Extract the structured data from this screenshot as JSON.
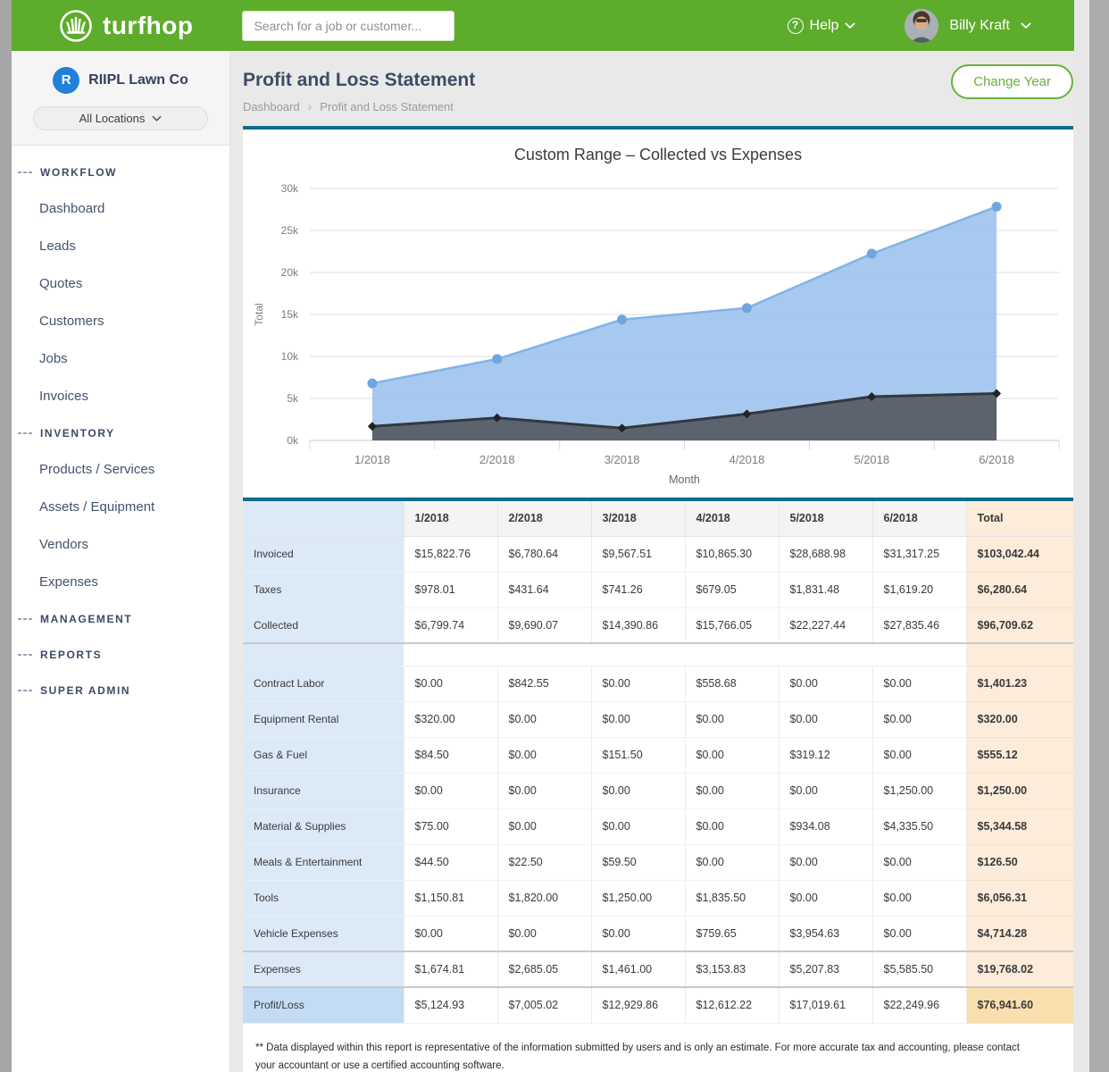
{
  "theme": {
    "header_green": "#5dac2b",
    "accent_teal": "#0d6d8c",
    "button_green": "#68b23b",
    "company_avatar_blue": "#2180d8",
    "collected_blue": "#a3c7ee",
    "expenses_dark": "#575f69"
  },
  "header": {
    "logo_text": "turfhop",
    "search_placeholder": "Search for a job or customer...",
    "help_label": "Help",
    "user_name": "Billy Kraft"
  },
  "sidebar": {
    "company": {
      "initial": "R",
      "name": "RIIPL Lawn Co",
      "location_selector": "All Locations"
    },
    "nav": [
      {
        "type": "section",
        "label": "WORKFLOW"
      },
      {
        "type": "item",
        "label": "Dashboard"
      },
      {
        "type": "item",
        "label": "Leads"
      },
      {
        "type": "item",
        "label": "Quotes"
      },
      {
        "type": "item",
        "label": "Customers"
      },
      {
        "type": "item",
        "label": "Jobs"
      },
      {
        "type": "item",
        "label": "Invoices"
      },
      {
        "type": "section",
        "label": "INVENTORY"
      },
      {
        "type": "item",
        "label": "Products / Services"
      },
      {
        "type": "item",
        "label": "Assets / Equipment"
      },
      {
        "type": "item",
        "label": "Vendors"
      },
      {
        "type": "item",
        "label": "Expenses"
      },
      {
        "type": "section",
        "label": "MANAGEMENT"
      },
      {
        "type": "section",
        "label": "REPORTS"
      },
      {
        "type": "section",
        "label": "SUPER ADMIN"
      }
    ]
  },
  "page": {
    "title": "Profit and Loss Statement",
    "breadcrumbs": [
      "Dashboard",
      "Profit and Loss Statement"
    ],
    "change_year_label": "Change Year"
  },
  "chart_data": {
    "type": "area",
    "title": "Custom Range – Collected vs Expenses",
    "x": [
      "1/2018",
      "2/2018",
      "3/2018",
      "4/2018",
      "5/2018",
      "6/2018"
    ],
    "xlabel": "Month",
    "ylabel": "Total",
    "ylim": [
      0,
      30000
    ],
    "yticks": [
      {
        "value": 0,
        "label": "0k"
      },
      {
        "value": 5000,
        "label": "5k"
      },
      {
        "value": 10000,
        "label": "10k"
      },
      {
        "value": 15000,
        "label": "15k"
      },
      {
        "value": 20000,
        "label": "20k"
      },
      {
        "value": 25000,
        "label": "25k"
      },
      {
        "value": 30000,
        "label": "30k"
      }
    ],
    "grid": true,
    "legend": false,
    "series": [
      {
        "name": "Collected",
        "values": [
          6799.74,
          9690.07,
          14390.86,
          15766.05,
          22227.44,
          27835.46
        ],
        "fill": "#a3c7ee",
        "stroke": "#82b3e7",
        "point_color": "#6fa6e0",
        "marker": "circle",
        "line_width": 2.5
      },
      {
        "name": "Expenses",
        "values": [
          1674.81,
          2685.05,
          1461.0,
          3153.83,
          5207.83,
          5585.5
        ],
        "fill": "#575f69",
        "stroke": "#34383f",
        "point_color": "#222428",
        "marker": "diamond",
        "line_width": 3
      }
    ]
  },
  "table": {
    "columns": [
      "1/2018",
      "2/2018",
      "3/2018",
      "4/2018",
      "5/2018",
      "6/2018"
    ],
    "total_label": "Total",
    "income_rows": [
      {
        "label": "Invoiced",
        "values": [
          "$15,822.76",
          "$6,780.64",
          "$9,567.51",
          "$10,865.30",
          "$28,688.98",
          "$31,317.25"
        ],
        "total": "$103,042.44"
      },
      {
        "label": "Taxes",
        "values": [
          "$978.01",
          "$431.64",
          "$741.26",
          "$679.05",
          "$1,831.48",
          "$1,619.20"
        ],
        "total": "$6,280.64"
      },
      {
        "label": "Collected",
        "values": [
          "$6,799.74",
          "$9,690.07",
          "$14,390.86",
          "$15,766.05",
          "$22,227.44",
          "$27,835.46"
        ],
        "total": "$96,709.62"
      }
    ],
    "expense_rows": [
      {
        "label": "Contract Labor",
        "values": [
          "$0.00",
          "$842.55",
          "$0.00",
          "$558.68",
          "$0.00",
          "$0.00"
        ],
        "total": "$1,401.23"
      },
      {
        "label": "Equipment Rental",
        "values": [
          "$320.00",
          "$0.00",
          "$0.00",
          "$0.00",
          "$0.00",
          "$0.00"
        ],
        "total": "$320.00"
      },
      {
        "label": "Gas & Fuel",
        "values": [
          "$84.50",
          "$0.00",
          "$151.50",
          "$0.00",
          "$319.12",
          "$0.00"
        ],
        "total": "$555.12"
      },
      {
        "label": "Insurance",
        "values": [
          "$0.00",
          "$0.00",
          "$0.00",
          "$0.00",
          "$0.00",
          "$1,250.00"
        ],
        "total": "$1,250.00"
      },
      {
        "label": "Material & Supplies",
        "values": [
          "$75.00",
          "$0.00",
          "$0.00",
          "$0.00",
          "$934.08",
          "$4,335.50"
        ],
        "total": "$5,344.58"
      },
      {
        "label": "Meals & Entertainment",
        "values": [
          "$44.50",
          "$22.50",
          "$59.50",
          "$0.00",
          "$0.00",
          "$0.00"
        ],
        "total": "$126.50"
      },
      {
        "label": "Tools",
        "values": [
          "$1,150.81",
          "$1,820.00",
          "$1,250.00",
          "$1,835.50",
          "$0.00",
          "$0.00"
        ],
        "total": "$6,056.31"
      },
      {
        "label": "Vehicle Expenses",
        "values": [
          "$0.00",
          "$0.00",
          "$0.00",
          "$759.65",
          "$3,954.63",
          "$0.00"
        ],
        "total": "$4,714.28"
      }
    ],
    "expenses_total_row": {
      "label": "Expenses",
      "values": [
        "$1,674.81",
        "$2,685.05",
        "$1,461.00",
        "$3,153.83",
        "$5,207.83",
        "$5,585.50"
      ],
      "total": "$19,768.02"
    },
    "profit_row": {
      "label": "Profit/Loss",
      "values": [
        "$5,124.93",
        "$7,005.02",
        "$12,929.86",
        "$12,612.22",
        "$17,019.61",
        "$22,249.96"
      ],
      "total": "$76,941.60"
    },
    "footnote": "** Data displayed within this report is representative of the information submitted by users and is only an estimate. For more accurate tax and accounting, please contact your accountant or use a certified accounting software."
  }
}
